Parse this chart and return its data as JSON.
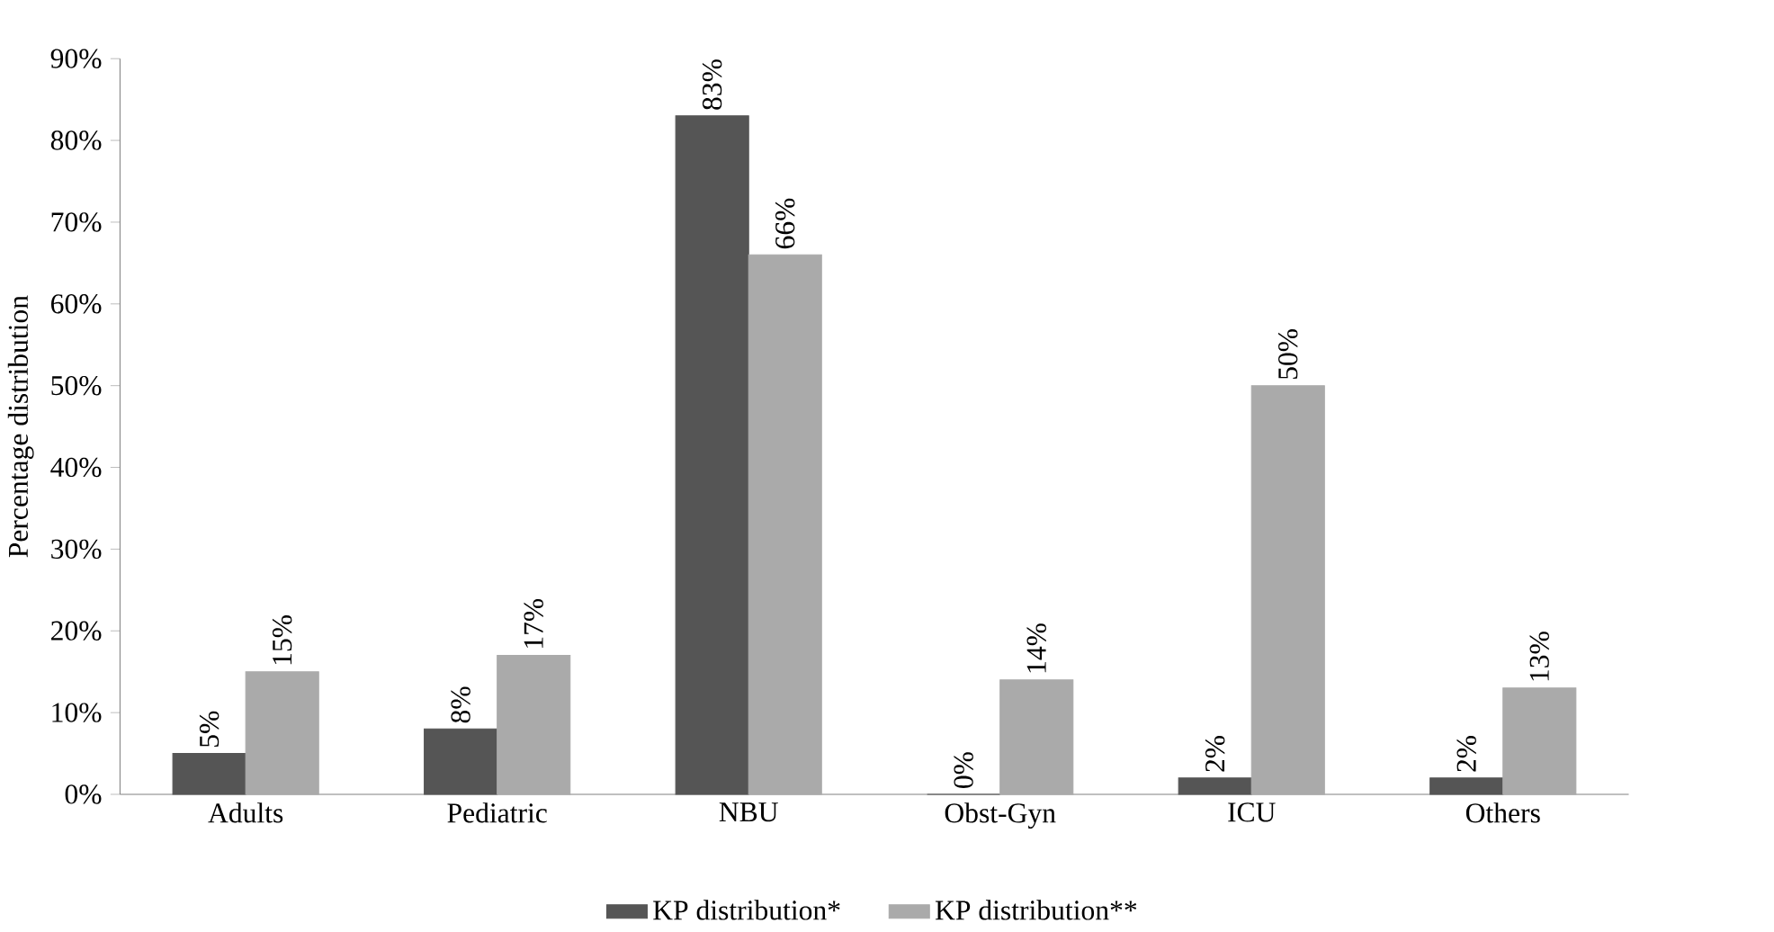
{
  "chart_data": {
    "type": "bar",
    "ylabel": "Percentage distribution",
    "categories": [
      "Adults",
      "Pediatric",
      "NBU",
      "Obst-Gyn",
      "ICU",
      "Others"
    ],
    "series": [
      {
        "name": "KP distribution*",
        "color": "#555555",
        "values": [
          5,
          8,
          83,
          0,
          2,
          2
        ],
        "value_labels": [
          "5%",
          "8%",
          "83%",
          "0%",
          "2%",
          "2%"
        ]
      },
      {
        "name": "KP distribution**",
        "color": "#aaaaaa",
        "values": [
          15,
          17,
          66,
          14,
          50,
          13
        ],
        "value_labels": [
          "15%",
          "17%",
          "66%",
          "14%",
          "50%",
          "13%"
        ]
      }
    ],
    "ylim": [
      0,
      90
    ],
    "yticks": [
      {
        "value": 0,
        "label": "0%"
      },
      {
        "value": 10,
        "label": "10%"
      },
      {
        "value": 20,
        "label": "20%"
      },
      {
        "value": 30,
        "label": "30%"
      },
      {
        "value": 40,
        "label": "40%"
      },
      {
        "value": 50,
        "label": "50%"
      },
      {
        "value": 60,
        "label": "60%"
      },
      {
        "value": 70,
        "label": "70%"
      },
      {
        "value": 80,
        "label": "80%"
      },
      {
        "value": 90,
        "label": "90%"
      }
    ],
    "legend": "bottom"
  }
}
